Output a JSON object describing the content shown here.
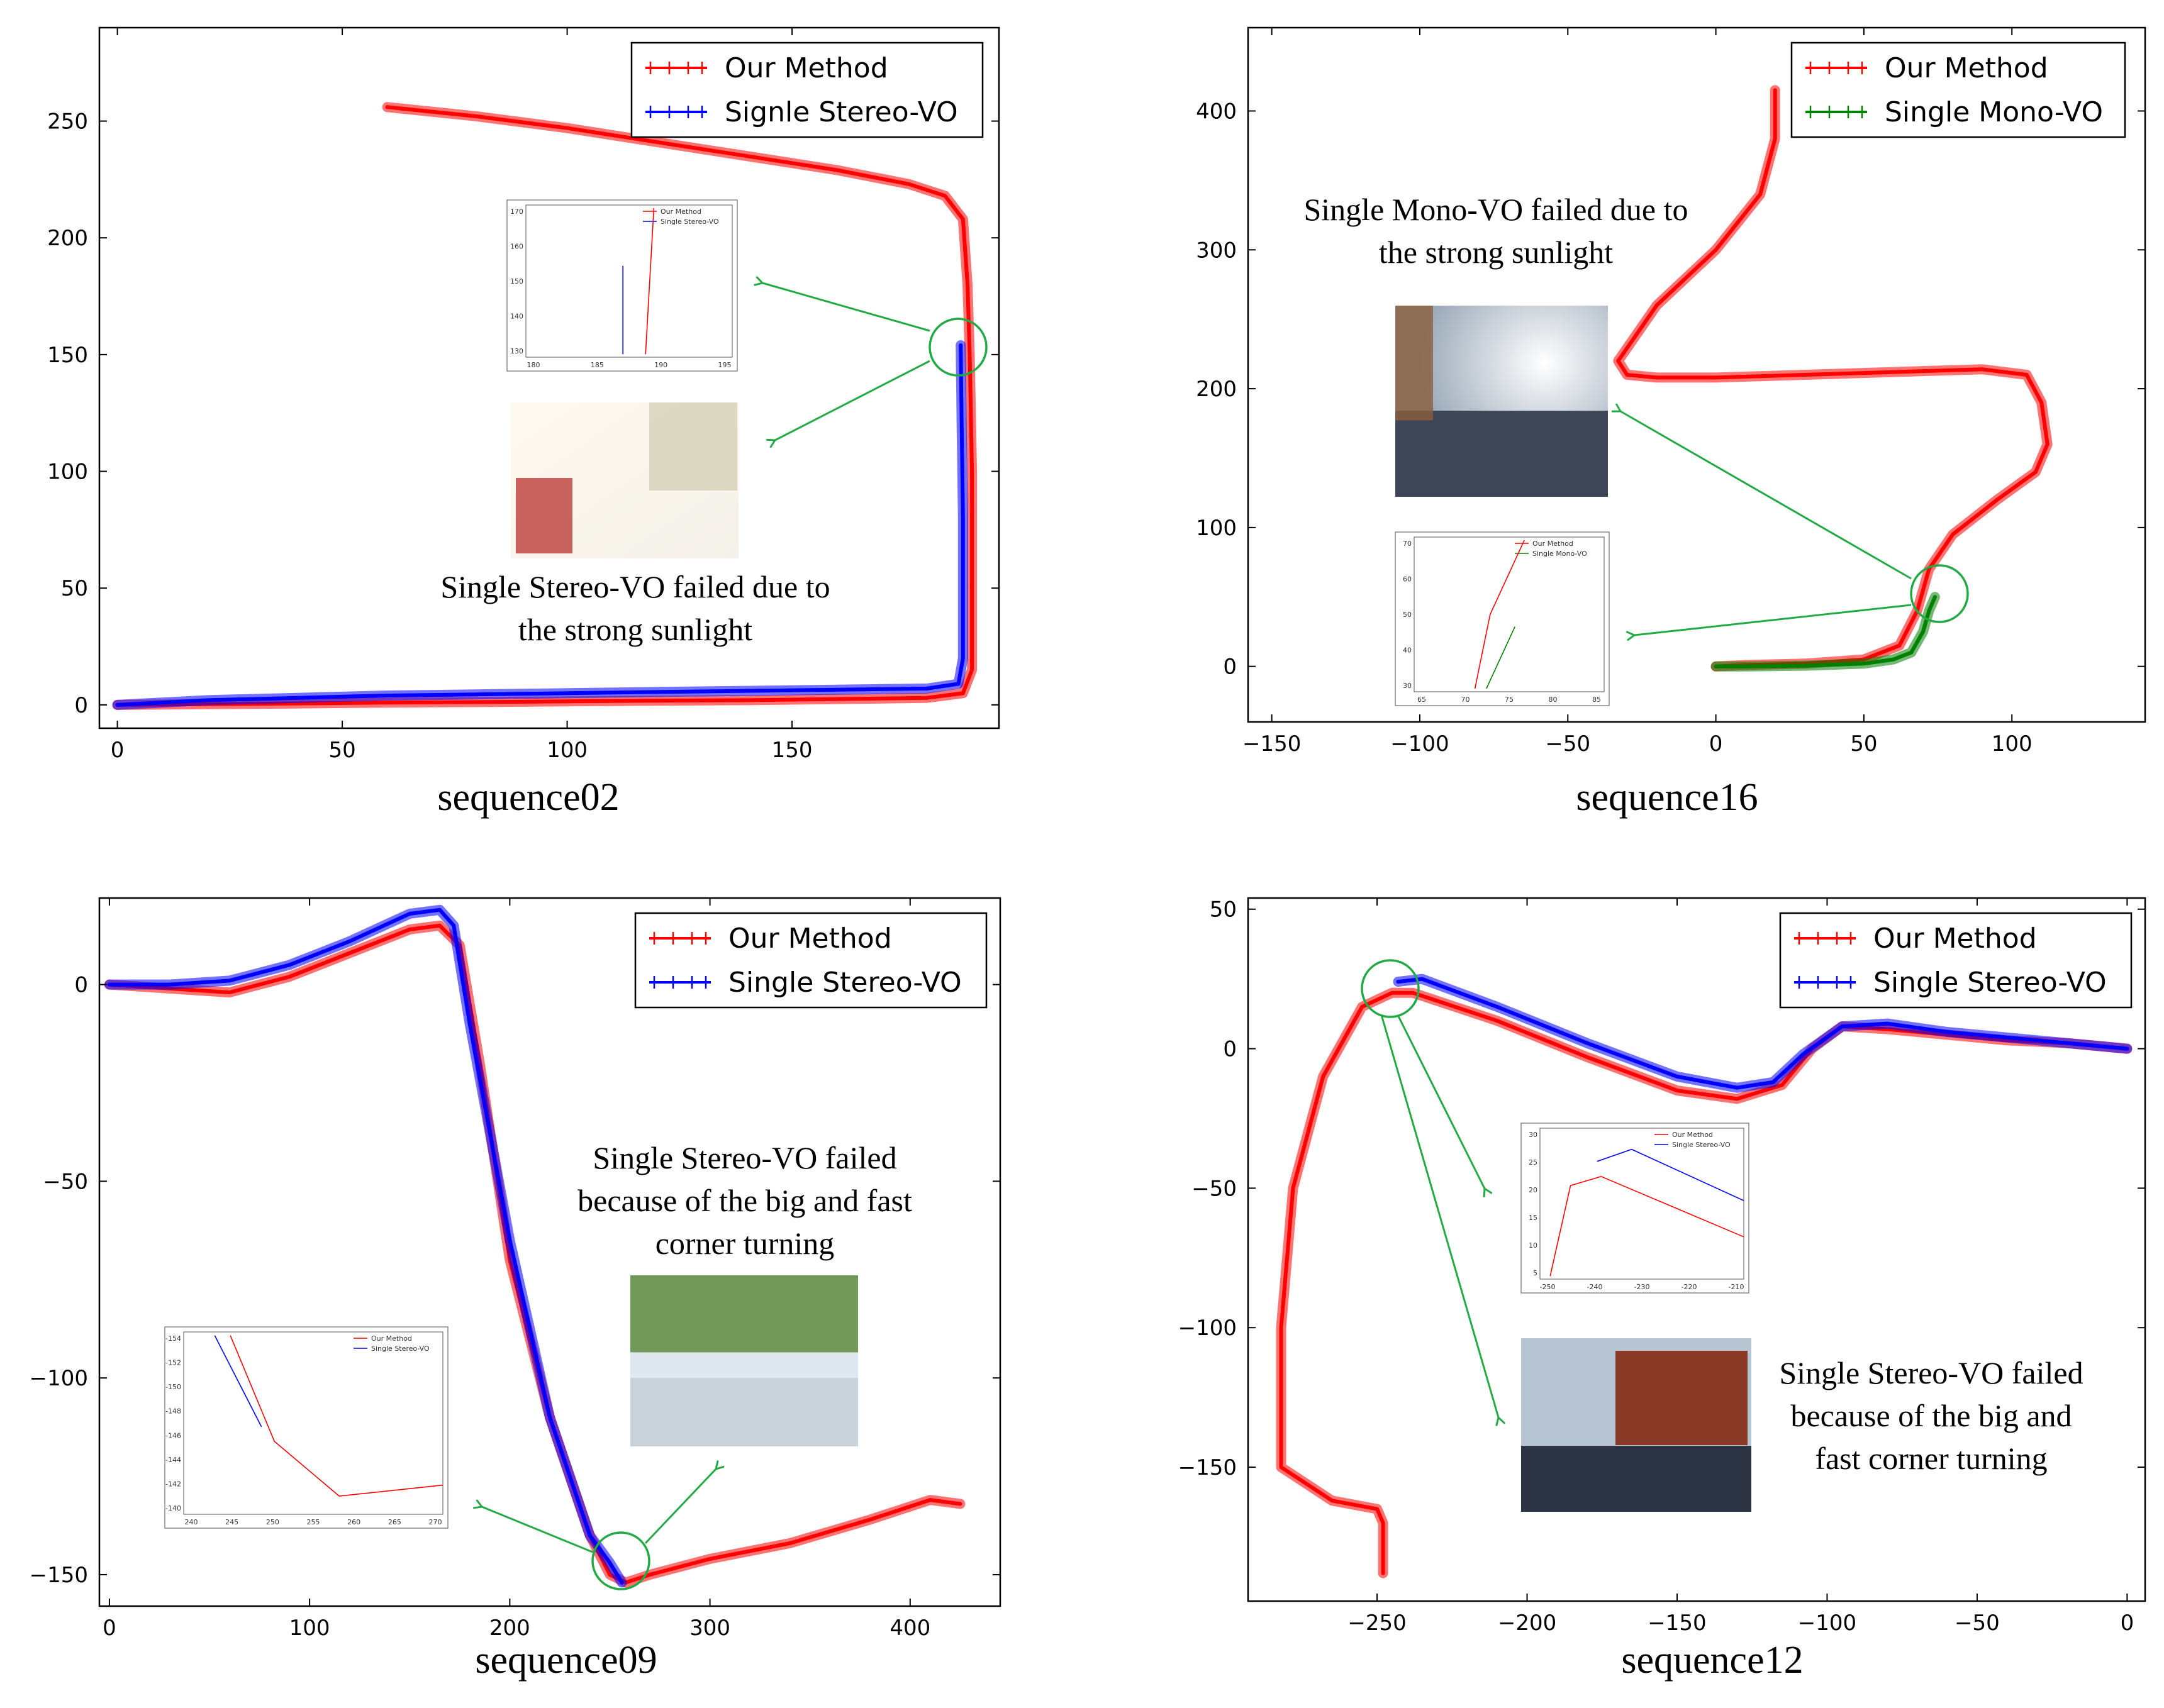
{
  "chart_data": [
    {
      "type": "line",
      "caption": "sequence02",
      "xlim": [
        -4,
        196
      ],
      "ylim": [
        -10,
        290
      ],
      "xticks": [
        0,
        50,
        100,
        150
      ],
      "yticks": [
        0,
        50,
        100,
        150,
        200,
        250
      ],
      "legend_position": "top-right",
      "annotation": [
        "Single Stereo-VO failed due to",
        "the strong sunlight"
      ],
      "inset": {
        "legend": [
          "Our Method",
          "Single Stereo-VO"
        ],
        "xticks": [
          180,
          185,
          190,
          195
        ],
        "yticks": [
          130,
          140,
          150,
          160,
          170
        ]
      },
      "series": [
        {
          "name": "Our Method",
          "color": "#ff0000",
          "x": [
            60,
            80,
            100,
            120,
            140,
            160,
            176,
            184,
            188,
            189,
            189.5,
            190,
            190,
            190,
            188,
            180,
            160,
            140,
            120,
            100,
            80,
            60,
            40,
            20,
            0
          ],
          "y": [
            256,
            252,
            247,
            241,
            235,
            229,
            223,
            218,
            208,
            180,
            150,
            100,
            50,
            15,
            5,
            3,
            2.5,
            2,
            1.8,
            1.5,
            1.2,
            1,
            0.6,
            0.3,
            0
          ]
        },
        {
          "name": "Signle Stereo-VO",
          "color": "#0000ff",
          "x": [
            187.5,
            187.7,
            188,
            188,
            187,
            180,
            160,
            140,
            120,
            100,
            80,
            60,
            40,
            20,
            0
          ],
          "y": [
            154,
            120,
            80,
            20,
            9,
            7,
            6.5,
            6,
            5.5,
            5,
            4.5,
            4,
            3,
            2,
            0
          ]
        }
      ]
    },
    {
      "type": "line",
      "caption": "sequence16",
      "xlim": [
        -158,
        145
      ],
      "ylim": [
        -40,
        460
      ],
      "xticks": [
        -150,
        -100,
        -50,
        0,
        50,
        100
      ],
      "yticks": [
        0,
        100,
        200,
        300,
        400
      ],
      "legend_position": "top-right",
      "annotation": [
        "Single Mono-VO failed due to",
        "the strong sunlight"
      ],
      "inset": {
        "legend": [
          "Our Method",
          "Single Mono-VO"
        ],
        "xticks": [
          65,
          70,
          75,
          80,
          85
        ],
        "yticks": [
          30,
          40,
          50,
          60,
          70
        ]
      },
      "series": [
        {
          "name": "Our Method",
          "color": "#ff0000",
          "x": [
            20,
            20,
            15,
            0,
            -20,
            -33,
            -30,
            -20,
            0,
            30,
            60,
            90,
            105,
            110,
            112,
            108,
            95,
            80,
            72,
            68,
            62,
            50,
            30,
            10,
            0
          ],
          "y": [
            415,
            380,
            340,
            300,
            260,
            220,
            210,
            208,
            208,
            210,
            212,
            214,
            210,
            190,
            160,
            140,
            120,
            95,
            70,
            40,
            15,
            5,
            2,
            1,
            0
          ]
        },
        {
          "name": "Single Mono-VO",
          "color": "#008000",
          "x": [
            74,
            72,
            70,
            66,
            60,
            50,
            30,
            10,
            0
          ],
          "y": [
            50,
            40,
            25,
            10,
            5,
            2,
            0.5,
            0,
            0
          ]
        }
      ]
    },
    {
      "type": "line",
      "caption": "sequence09",
      "xlim": [
        -5,
        445
      ],
      "ylim": [
        -158,
        22
      ],
      "xticks": [
        0,
        100,
        200,
        300,
        400
      ],
      "yticks": [
        -150,
        -100,
        -50,
        0
      ],
      "legend_position": "top-right",
      "annotation": [
        "Single Stereo-VO failed",
        "because of the big and fast",
        "corner turning"
      ],
      "inset": {
        "legend": [
          "Our Method",
          "Single Stereo-VO"
        ],
        "xticks": [
          240,
          245,
          250,
          255,
          260,
          265,
          270
        ],
        "yticks": [
          -140,
          -142,
          -144,
          -146,
          -148,
          -150,
          -152,
          -154
        ]
      },
      "series": [
        {
          "name": "Our Method",
          "color": "#ff0000",
          "x": [
            0,
            30,
            60,
            90,
            120,
            150,
            165,
            175,
            185,
            200,
            220,
            240,
            250,
            258,
            270,
            300,
            340,
            380,
            410,
            425
          ],
          "y": [
            0,
            -1,
            -2,
            2,
            8,
            14,
            15,
            10,
            -20,
            -70,
            -110,
            -140,
            -150,
            -152,
            -150,
            -146,
            -142,
            -136,
            -131,
            -132
          ]
        },
        {
          "name": "Single Stereo-VO",
          "color": "#0000ff",
          "x": [
            0,
            30,
            60,
            90,
            120,
            150,
            165,
            172,
            180,
            200,
            220,
            240,
            250,
            256
          ],
          "y": [
            0,
            0,
            1,
            5,
            11,
            18,
            19,
            15,
            -10,
            -65,
            -110,
            -140,
            -147,
            -152
          ]
        }
      ]
    },
    {
      "type": "line",
      "caption": "sequence12",
      "xlim": [
        -293,
        6
      ],
      "ylim": [
        -198,
        54
      ],
      "xticks": [
        -250,
        -200,
        -150,
        -100,
        -50,
        0
      ],
      "yticks": [
        -150,
        -100,
        -50,
        0,
        50
      ],
      "legend_position": "top-right",
      "annotation": [
        "Single Stereo-VO failed",
        "because of the big and",
        "fast corner turning"
      ],
      "inset": {
        "legend": [
          "Our Method",
          "Single Stereo-VO"
        ],
        "xticks": [
          -250,
          -240,
          -230,
          -220,
          -210
        ],
        "yticks": [
          5,
          10,
          15,
          20,
          25,
          30
        ]
      },
      "series": [
        {
          "name": "Our Method",
          "color": "#ff0000",
          "x": [
            -248,
            -248,
            -250,
            -265,
            -282,
            -282,
            -278,
            -268,
            -255,
            -245,
            -238,
            -210,
            -180,
            -150,
            -130,
            -115,
            -105,
            -95,
            -80,
            -60,
            -40,
            -20,
            0
          ],
          "y": [
            -188,
            -170,
            -165,
            -162,
            -150,
            -100,
            -50,
            -10,
            15,
            20,
            20,
            10,
            -3,
            -15,
            -18,
            -13,
            0,
            8,
            7,
            5,
            3,
            2,
            0
          ]
        },
        {
          "name": "Single Stereo-VO",
          "color": "#0000ff",
          "x": [
            -243,
            -235,
            -210,
            -180,
            -150,
            -130,
            -118,
            -108,
            -95,
            -80,
            -60,
            -40,
            -20,
            0
          ],
          "y": [
            24,
            25,
            15,
            2,
            -10,
            -14,
            -12,
            -2,
            8,
            9,
            6,
            4,
            2,
            0
          ]
        }
      ]
    }
  ]
}
